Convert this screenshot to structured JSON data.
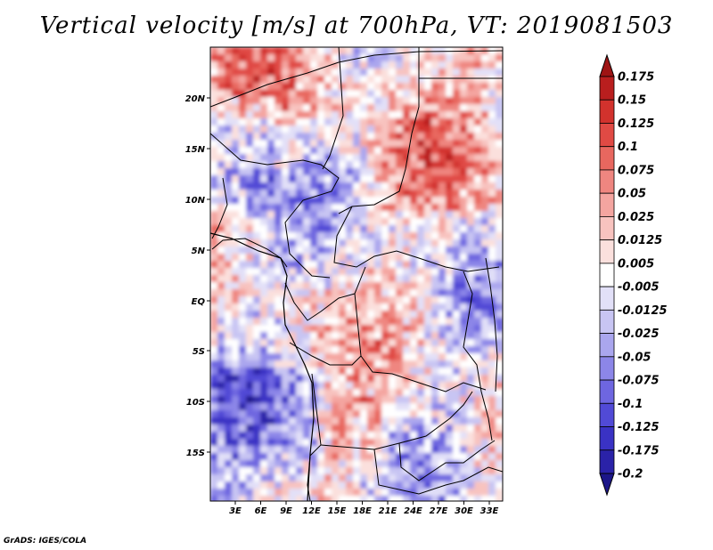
{
  "title": "Vertical velocity [m/s] at 700hPa, VT: 2019081503",
  "credit": "GrADS: IGES/COLA",
  "lat_labels": [
    "20N",
    "15N",
    "10N",
    "5N",
    "EQ",
    "5S",
    "10S",
    "15S"
  ],
  "lon_labels": [
    "3E",
    "6E",
    "9E",
    "12E",
    "15E",
    "18E",
    "21E",
    "24E",
    "27E",
    "30E",
    "33E"
  ],
  "colorbar": {
    "labels": [
      "0.175",
      "0.15",
      "0.125",
      "0.1",
      "0.075",
      "0.05",
      "0.025",
      "0.0125",
      "0.005",
      "-0.005",
      "-0.0125",
      "-0.025",
      "-0.05",
      "-0.075",
      "-0.1",
      "-0.125",
      "-0.175",
      "-0.2"
    ],
    "colors": [
      "#9e1414",
      "#b91e1e",
      "#d2322d",
      "#e04a44",
      "#e8675f",
      "#ef8680",
      "#f4a5a0",
      "#f8c3bf",
      "#fbe0dd",
      "#ffffff",
      "#e2e0f8",
      "#c8c5f3",
      "#aaa6ee",
      "#8c86e8",
      "#6e66e0",
      "#514ad6",
      "#3a32c4",
      "#2a22a8",
      "#1c1688"
    ]
  },
  "fields": {
    "variable": "Vertical velocity",
    "units": "m/s",
    "level": "700hPa",
    "valid_time": "2019081503"
  }
}
